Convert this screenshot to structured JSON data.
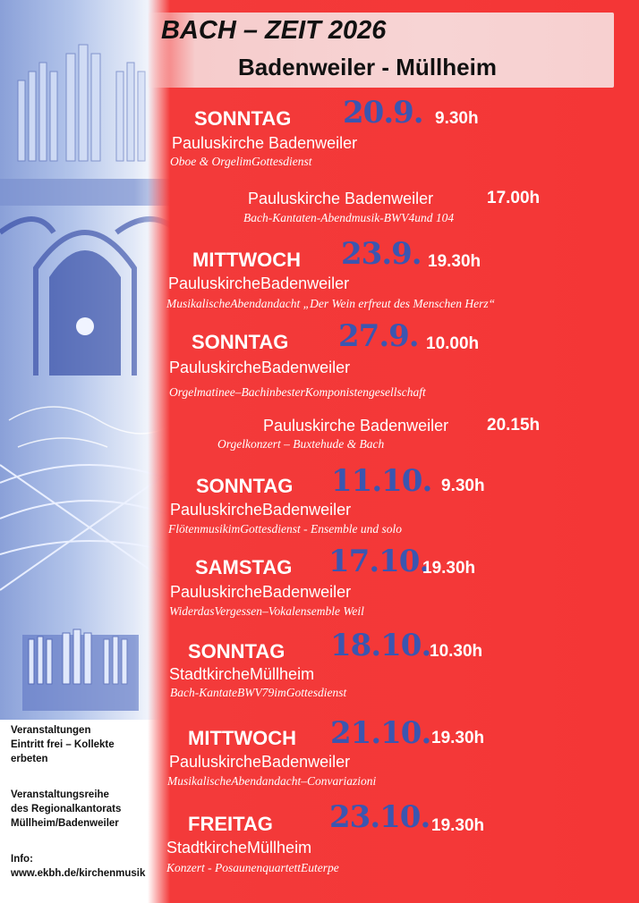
{
  "header": {
    "title": "BACH – ZEIT 2026",
    "subtitle": "Badenweiler - Müllheim"
  },
  "events": [
    {
      "day": "SONNTAG",
      "date": "20.9.",
      "time": "9.30h",
      "venue": "Pauluskirche Badenweiler",
      "desc": "Oboe & OrgelimGottesdienst"
    },
    {
      "venue": "Pauluskirche Badenweiler",
      "time": "17.00h",
      "desc": "Bach-Kantaten-Abendmusik-BWV4und 104"
    },
    {
      "day": "MITTWOCH",
      "date": "23.9.",
      "time": "19.30h",
      "venue": "PauluskircheBadenweiler",
      "desc": "MusikalischeAbendandacht „Der Wein erfreut des Menschen Herz“"
    },
    {
      "day": "SONNTAG",
      "date": "27.9.",
      "time": "10.00h",
      "venue": "PauluskircheBadenweiler",
      "desc": "Orgelmatinee–BachinbesterKomponistengesellschaft"
    },
    {
      "venue": "Pauluskirche Badenweiler",
      "time": "20.15h",
      "desc": "Orgelkonzert – Buxtehude & Bach"
    },
    {
      "day": "SONNTAG",
      "date": "11.10.",
      "time": "9.30h",
      "venue": "PauluskircheBadenweiler",
      "desc": "FlötenmusikimGottesdienst - Ensemble und solo"
    },
    {
      "day": "SAMSTAG",
      "date": "17.10.",
      "time": "19.30h",
      "venue": "PauluskircheBadenweiler",
      "desc": "WiderdasVergessen–Vokalensemble Weil"
    },
    {
      "day": "SONNTAG",
      "date": "18.10.",
      "time": "10.30h",
      "venue": "StadtkircheMüllheim",
      "desc": "Bach-KantateBWV79imGottesdienst"
    },
    {
      "day": "MITTWOCH",
      "date": "21.10.",
      "time": "19.30h",
      "venue": "PauluskircheBadenweiler",
      "desc": "MusikalischeAbendandacht–Convariazioni"
    },
    {
      "day": "FREITAG",
      "date": "23.10.",
      "time": "19.30h",
      "venue": "StadtkircheMüllheim",
      "desc": "Konzert - PosaunenquartettEuterpe"
    }
  ],
  "info": {
    "line1": "Veranstaltungen",
    "line2": "Eintritt frei – Kollekte",
    "line3": "erbeten",
    "line4": "Veranstaltungsreihe",
    "line5": "des Regionalkantorats",
    "line6": "Müllheim/Badenweiler",
    "line7": "Info:",
    "line8": "www.ekbh.de/kirchenmusik"
  },
  "colors": {
    "red": "#f33a3a",
    "date_blue": "#3b56b0",
    "panel_blue": "#8aa0d8"
  }
}
